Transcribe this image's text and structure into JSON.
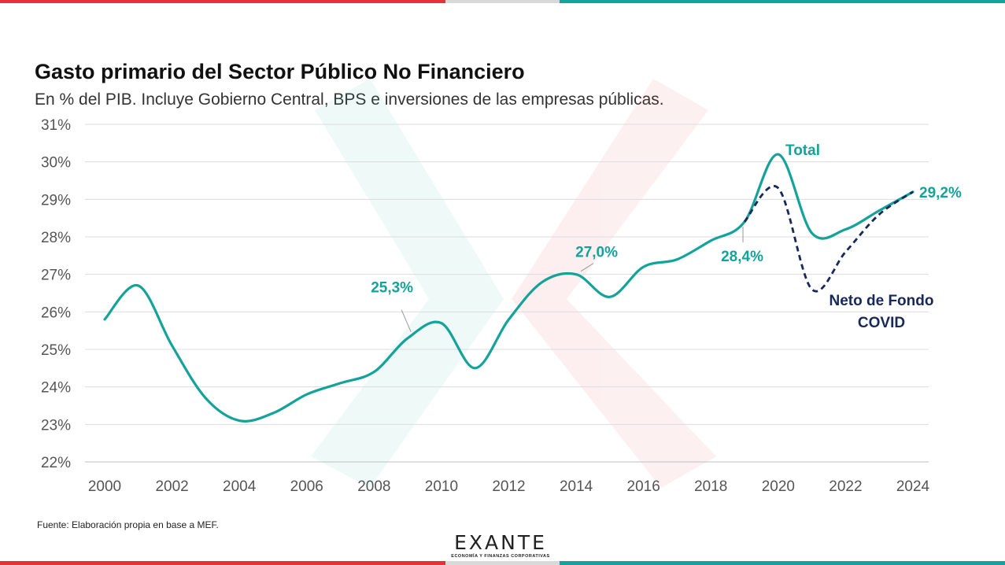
{
  "header": {
    "title": "Gasto primario del Sector Público No Financiero",
    "subtitle": "En % del PIB. Incluye Gobierno Central, BPS e inversiones de las empresas públicas."
  },
  "footer": {
    "source": "Fuente: Elaboración propia en base a MEF.",
    "logo_word": "EXANTE",
    "logo_tagline": "ECONOMÍA Y FINANZAS CORPORATIVAS"
  },
  "colors": {
    "red": "#e8303a",
    "teal": "#14a39a",
    "gray": "#d9d9d9",
    "navy": "#17285a"
  },
  "chart_data": {
    "type": "line",
    "title": "Gasto primario del Sector Público No Financiero",
    "subtitle": "En % del PIB. Incluye Gobierno Central, BPS e inversiones de las empresas públicas.",
    "xlabel": "",
    "ylabel": "",
    "xlim": [
      2000,
      2024
    ],
    "ylim": [
      22,
      31
    ],
    "x_ticks": [
      2000,
      2002,
      2004,
      2006,
      2008,
      2010,
      2012,
      2014,
      2016,
      2018,
      2020,
      2022,
      2024
    ],
    "y_ticks": [
      22,
      23,
      24,
      25,
      26,
      27,
      28,
      29,
      30,
      31
    ],
    "y_tick_labels": [
      "22%",
      "23%",
      "24%",
      "25%",
      "26%",
      "27%",
      "28%",
      "29%",
      "30%",
      "31%"
    ],
    "grid": "horizontal",
    "series": [
      {
        "name": "Total",
        "style": "solid",
        "color": "#14a39a",
        "x": [
          2000,
          2001,
          2002,
          2003,
          2004,
          2005,
          2006,
          2007,
          2008,
          2009,
          2010,
          2011,
          2012,
          2013,
          2014,
          2015,
          2016,
          2017,
          2018,
          2019,
          2020,
          2021,
          2022,
          2023,
          2024
        ],
        "values": [
          25.8,
          26.7,
          25.1,
          23.7,
          23.1,
          23.3,
          23.8,
          24.1,
          24.4,
          25.3,
          25.7,
          24.5,
          25.8,
          26.8,
          27.0,
          26.4,
          27.2,
          27.4,
          27.9,
          28.4,
          30.2,
          28.1,
          28.2,
          28.7,
          29.2
        ]
      },
      {
        "name": "Neto de Fondo COVID",
        "style": "dashed",
        "color": "#17285a",
        "x": [
          2019,
          2020,
          2021,
          2022,
          2023,
          2024
        ],
        "values": [
          28.4,
          29.3,
          26.6,
          27.6,
          28.6,
          29.2
        ]
      }
    ],
    "annotations": [
      {
        "text": "25,3%",
        "x": 2009,
        "y": 25.3
      },
      {
        "text": "27,0%",
        "x": 2014,
        "y": 27.0
      },
      {
        "text": "28,4%",
        "x": 2019,
        "y": 28.4
      },
      {
        "text": "29,2%",
        "x": 2024,
        "y": 29.2
      }
    ],
    "series_labels": {
      "total": "Total",
      "covid_line1": "Neto de Fondo",
      "covid_line2": "COVID"
    }
  }
}
